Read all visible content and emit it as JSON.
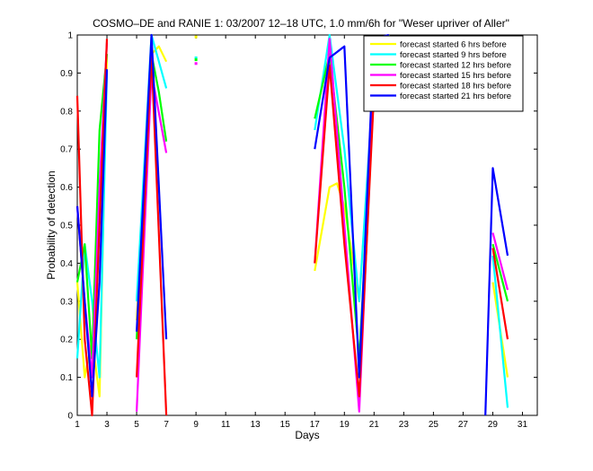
{
  "chart_data": {
    "type": "line",
    "title": "COSMO–DE and RANIE 1: 03/2007 12–18 UTC, 1.0 mm/6h for \"Weser upriver of Aller\"",
    "xlabel": "Days",
    "ylabel": "Probability of detection",
    "xlim": [
      1,
      32
    ],
    "ylim": [
      0,
      1
    ],
    "xticks": [
      1,
      3,
      5,
      7,
      9,
      11,
      13,
      15,
      17,
      19,
      21,
      23,
      25,
      27,
      29,
      31
    ],
    "yticks": [
      0,
      0.1,
      0.2,
      0.3,
      0.4,
      0.5,
      0.6,
      0.7,
      0.8,
      0.9,
      1
    ],
    "ytick_labels": [
      "0",
      "0.1",
      "0.2",
      "0.3",
      "0.4",
      "0.5",
      "0.6",
      "0.7",
      "0.8",
      "0.9",
      "1"
    ],
    "grid": false,
    "legend_position": "top-right",
    "series": [
      {
        "name": "forecast started 6 hrs before",
        "color": "#ffff00",
        "segments": [
          [
            [
              1,
              0.35
            ],
            [
              1.5,
              0.1
            ],
            [
              2,
              0.2
            ],
            [
              2.5,
              0.05
            ],
            [
              3,
              0.95
            ]
          ],
          [
            [
              5,
              0.25
            ],
            [
              6,
              0.95
            ],
            [
              6.5,
              0.97
            ],
            [
              7,
              0.93
            ]
          ],
          [
            [
              17,
              0.38
            ],
            [
              18,
              0.6
            ],
            [
              18.5,
              0.61
            ],
            [
              19,
              0.55
            ],
            [
              20,
              0.3
            ],
            [
              21,
              0.88
            ],
            [
              22,
              1.0
            ]
          ],
          [
            [
              29,
              0.35
            ],
            [
              30,
              0.1
            ]
          ]
        ],
        "points": [
          [
            9,
            0.995
          ]
        ]
      },
      {
        "name": "forecast started 9 hrs before",
        "color": "#00ffff",
        "segments": [
          [
            [
              1,
              0.15
            ],
            [
              1.5,
              0.45
            ],
            [
              2,
              0.3
            ],
            [
              2.5,
              0.1
            ],
            [
              3,
              0.9
            ]
          ],
          [
            [
              5,
              0.3
            ],
            [
              6,
              1.0
            ],
            [
              7,
              0.86
            ]
          ],
          [
            [
              17,
              0.75
            ],
            [
              18,
              1.0
            ],
            [
              19,
              0.7
            ],
            [
              20,
              0.3
            ],
            [
              21,
              0.9
            ],
            [
              22,
              1.0
            ]
          ],
          [
            [
              29,
              0.42
            ],
            [
              30,
              0.02
            ]
          ]
        ],
        "points": [
          [
            9,
            0.94
          ]
        ]
      },
      {
        "name": "forecast started 12 hrs before",
        "color": "#00ff00",
        "segments": [
          [
            [
              1,
              0.35
            ],
            [
              1.5,
              0.45
            ],
            [
              2,
              0.15
            ],
            [
              2.5,
              0.75
            ],
            [
              3,
              0.95
            ]
          ],
          [
            [
              5,
              0.2
            ],
            [
              6,
              0.95
            ],
            [
              6.5,
              0.85
            ],
            [
              7,
              0.72
            ]
          ],
          [
            [
              17,
              0.78
            ],
            [
              18,
              0.95
            ],
            [
              19,
              0.6
            ],
            [
              20,
              0.15
            ],
            [
              21,
              0.85
            ],
            [
              22,
              0.99
            ]
          ],
          [
            [
              29,
              0.45
            ],
            [
              30,
              0.3
            ]
          ]
        ],
        "points": [
          [
            9,
            0.935
          ]
        ]
      },
      {
        "name": "forecast started 15 hrs before",
        "color": "#ff00ff",
        "segments": [
          [
            [
              1,
              0.55
            ],
            [
              1.5,
              0.3
            ],
            [
              2,
              0.1
            ],
            [
              2.5,
              0.6
            ],
            [
              3,
              0.98
            ]
          ],
          [
            [
              5,
              0.01
            ],
            [
              6,
              0.9
            ],
            [
              7,
              0.69
            ]
          ],
          [
            [
              17,
              0.4
            ],
            [
              18,
              0.99
            ],
            [
              19,
              0.5
            ],
            [
              20,
              0.01
            ],
            [
              21,
              0.9
            ],
            [
              22,
              0.99
            ]
          ],
          [
            [
              29,
              0.48
            ],
            [
              30,
              0.33
            ]
          ]
        ],
        "points": [
          [
            9,
            0.925
          ]
        ]
      },
      {
        "name": "forecast started 18 hrs before",
        "color": "#ff0000",
        "segments": [
          [
            [
              1,
              0.84
            ],
            [
              1.5,
              0.2
            ],
            [
              2,
              0.0
            ],
            [
              2.5,
              0.5
            ],
            [
              3,
              0.99
            ]
          ],
          [
            [
              5,
              0.1
            ],
            [
              6,
              0.95
            ],
            [
              7,
              0.0
            ]
          ],
          [
            [
              17,
              0.4
            ],
            [
              18,
              0.92
            ],
            [
              19,
              0.45
            ],
            [
              20,
              0.05
            ],
            [
              21,
              0.85
            ],
            [
              22,
              0.99
            ]
          ],
          [
            [
              29,
              0.44
            ],
            [
              30,
              0.2
            ]
          ]
        ],
        "points": []
      },
      {
        "name": "forecast started 21 hrs before",
        "color": "#0000ff",
        "segments": [
          [
            [
              1,
              0.55
            ],
            [
              1.5,
              0.3
            ],
            [
              2,
              0.05
            ],
            [
              2.5,
              0.35
            ],
            [
              3,
              0.91
            ]
          ],
          [
            [
              5,
              0.22
            ],
            [
              6,
              1.0
            ],
            [
              7,
              0.2
            ]
          ],
          [
            [
              17,
              0.7
            ],
            [
              18,
              0.94
            ],
            [
              19,
              0.97
            ],
            [
              20,
              0.1
            ],
            [
              21,
              0.99
            ],
            [
              22,
              1.0
            ]
          ],
          [
            [
              28.5,
              0.0
            ],
            [
              29,
              0.65
            ],
            [
              30,
              0.42
            ]
          ]
        ],
        "points": []
      }
    ]
  }
}
